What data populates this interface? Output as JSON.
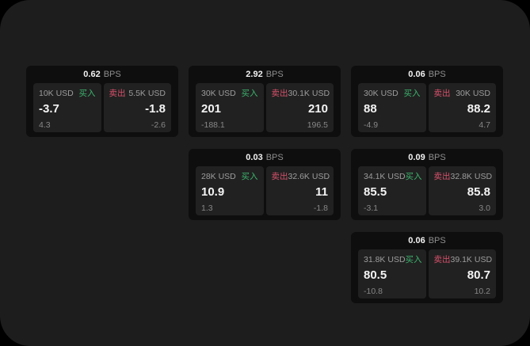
{
  "labels": {
    "buy": "买入",
    "sell": "卖出",
    "bps_unit": "BPS"
  },
  "colors": {
    "window_bg": "#1d1d1d",
    "card_bg": "#0e0e0e",
    "panel_bg": "#212121",
    "buy_green": "#3db46e",
    "sell_red": "#d8516b"
  },
  "cards": [
    {
      "col": 1,
      "row": 1,
      "bps": "0.62",
      "buy": {
        "amount": "10K USD",
        "value": "-3.7",
        "sub": "4.3"
      },
      "sell": {
        "amount": "5.5K USD",
        "value": "-1.8",
        "sub": "-2.6"
      }
    },
    {
      "col": 2,
      "row": 1,
      "bps": "2.92",
      "buy": {
        "amount": "30K USD",
        "value": "201",
        "sub": "-188.1"
      },
      "sell": {
        "amount": "30.1K USD",
        "value": "210",
        "sub": "196.5"
      }
    },
    {
      "col": 3,
      "row": 1,
      "bps": "0.06",
      "buy": {
        "amount": "30K USD",
        "value": "88",
        "sub": "-4.9"
      },
      "sell": {
        "amount": "30K USD",
        "value": "88.2",
        "sub": "4.7"
      }
    },
    {
      "col": 2,
      "row": 2,
      "bps": "0.03",
      "buy": {
        "amount": "28K USD",
        "value": "10.9",
        "sub": "1.3"
      },
      "sell": {
        "amount": "32.6K USD",
        "value": "11",
        "sub": "-1.8"
      }
    },
    {
      "col": 3,
      "row": 2,
      "bps": "0.09",
      "buy": {
        "amount": "34.1K USD",
        "value": "85.5",
        "sub": "-3.1"
      },
      "sell": {
        "amount": "32.8K USD",
        "value": "85.8",
        "sub": "3.0"
      }
    },
    {
      "col": 3,
      "row": 3,
      "bps": "0.06",
      "buy": {
        "amount": "31.8K USD",
        "value": "80.5",
        "sub": "-10.8"
      },
      "sell": {
        "amount": "39.1K USD",
        "value": "80.7",
        "sub": "10.2"
      }
    }
  ]
}
